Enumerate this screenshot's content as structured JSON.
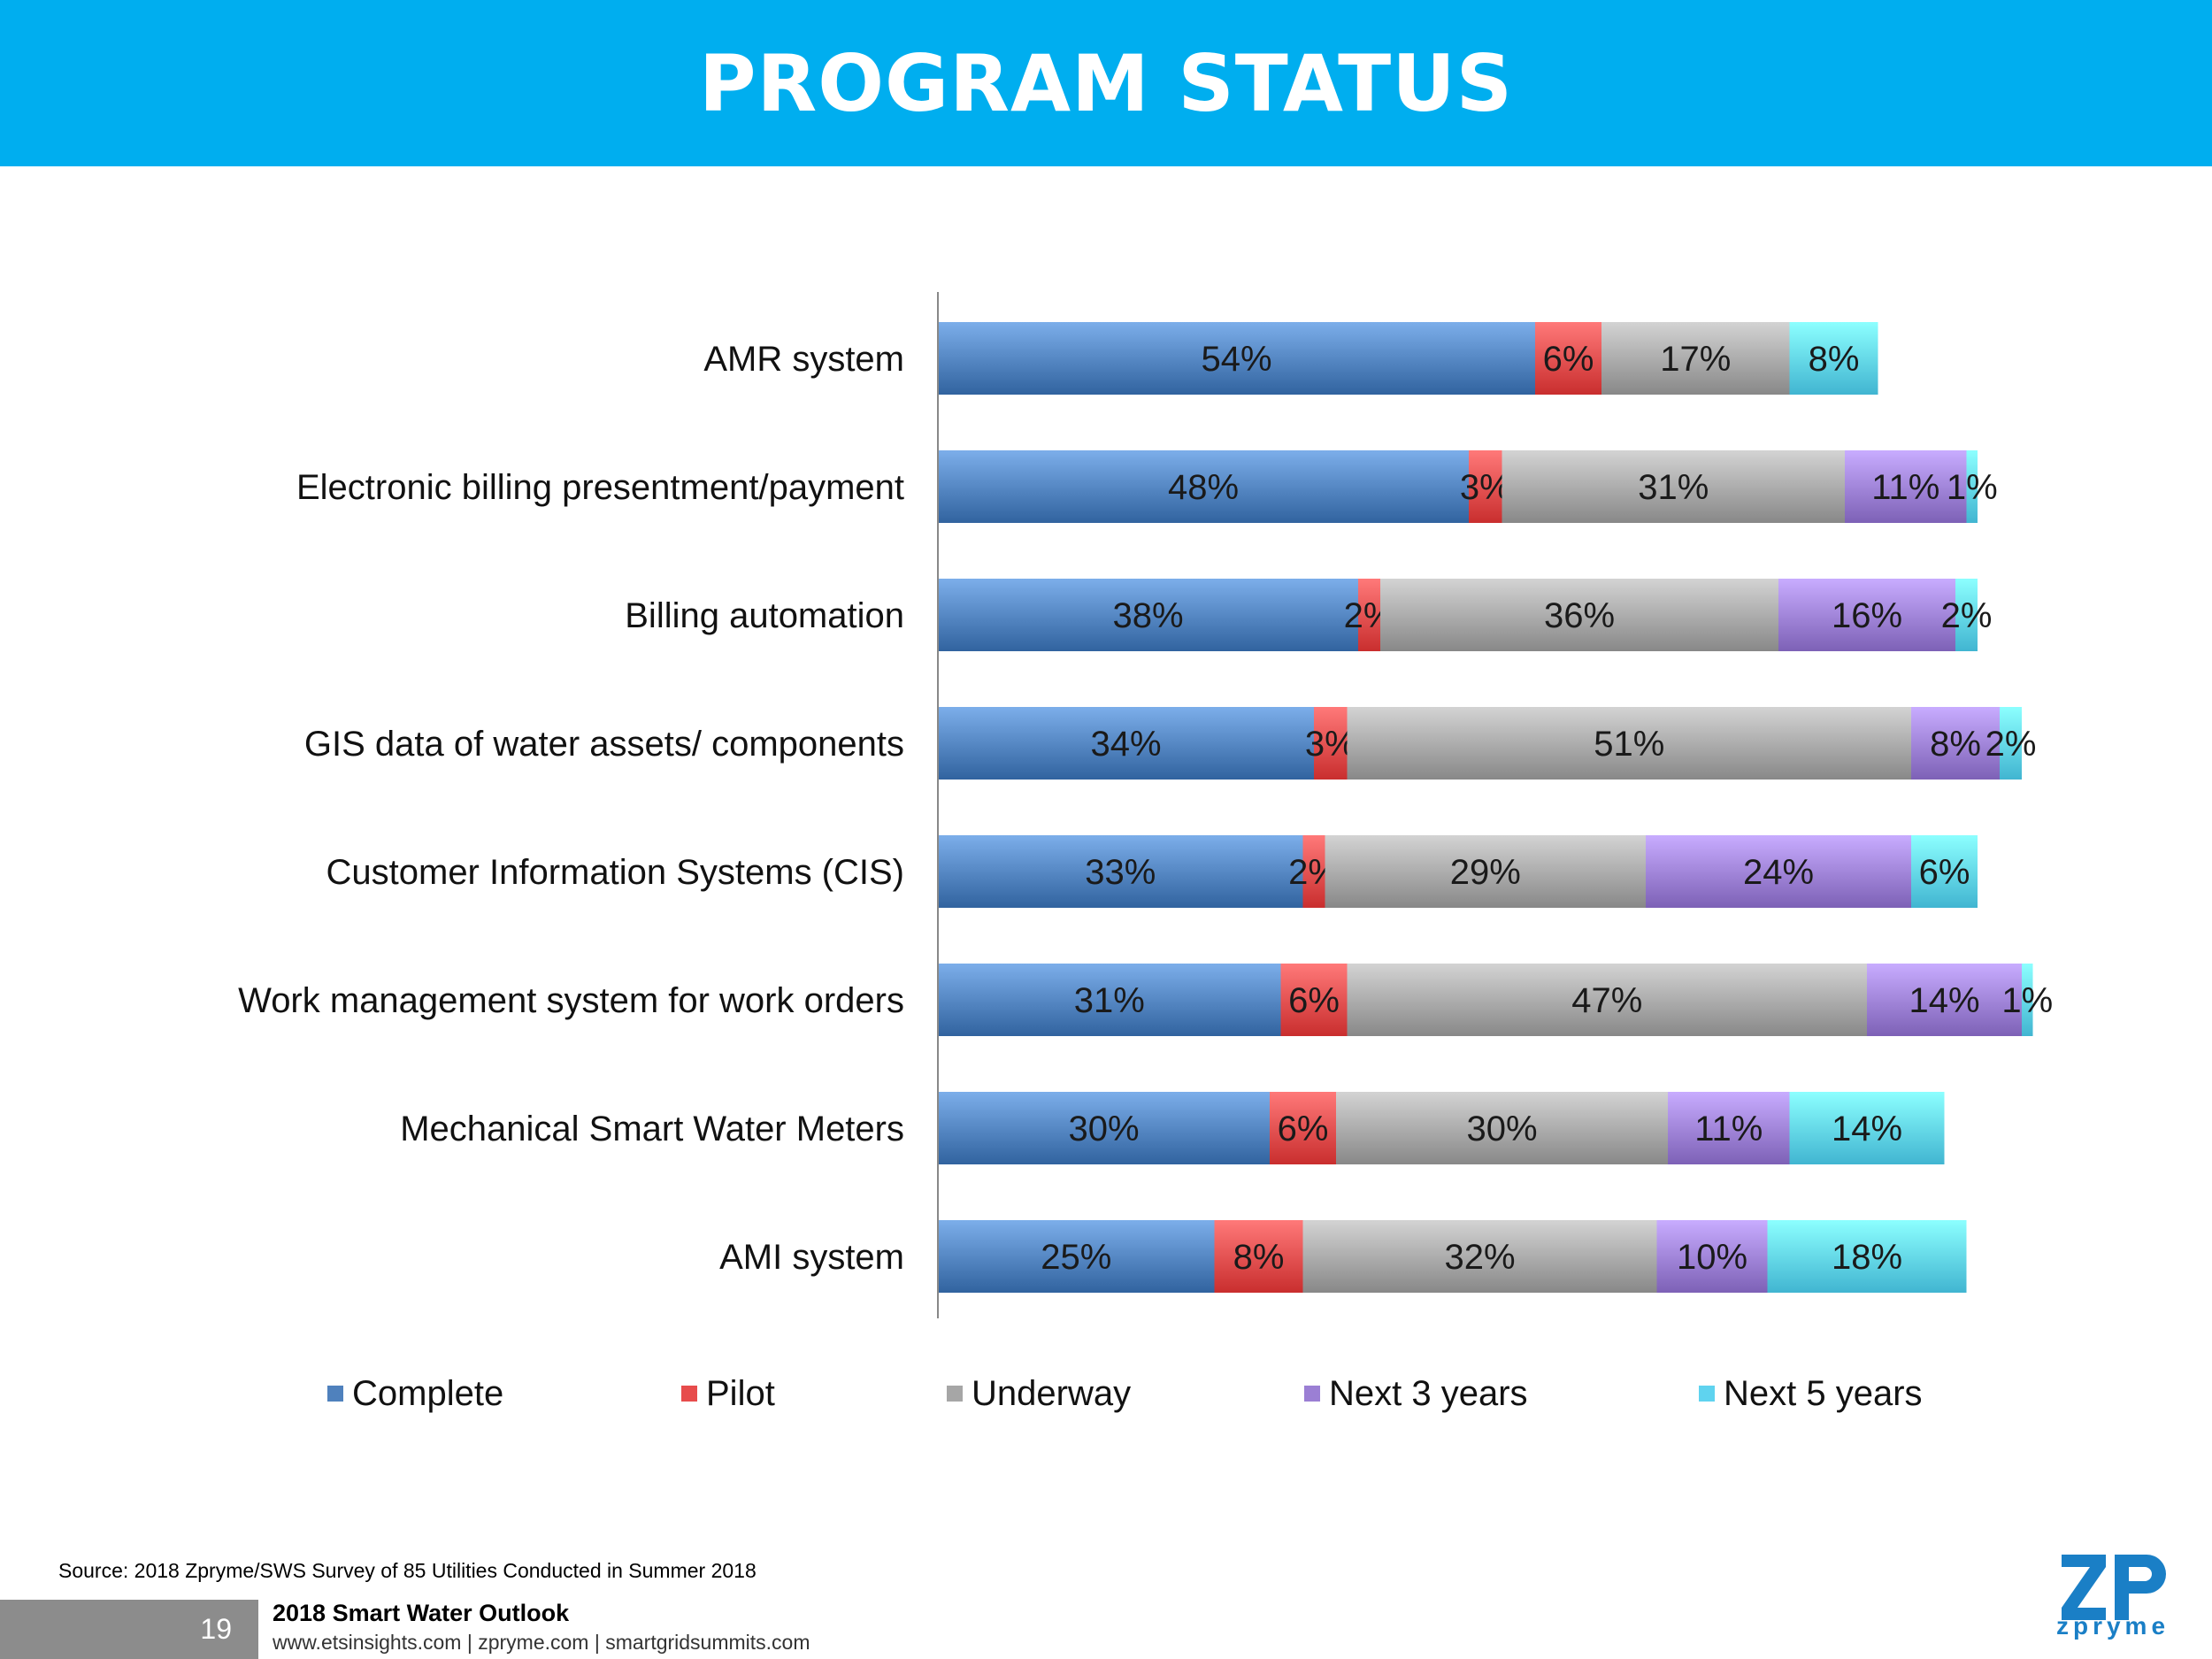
{
  "header": {
    "title": "PROGRAM STATUS"
  },
  "chart_data": {
    "type": "bar",
    "orientation": "horizontal",
    "stacked": true,
    "categories": [
      "AMR system",
      "Electronic billing presentment/payment",
      "Billing automation",
      "GIS data of water assets/ components",
      "Customer Information Systems (CIS)",
      "Work management system for work orders",
      "Mechanical Smart Water Meters",
      "AMI system"
    ],
    "series": [
      {
        "name": "Complete",
        "color": "#4f81bd",
        "values": [
          54,
          48,
          38,
          34,
          33,
          31,
          30,
          25
        ]
      },
      {
        "name": "Pilot",
        "color": "#e74c4c",
        "values": [
          6,
          3,
          2,
          3,
          2,
          6,
          6,
          8
        ]
      },
      {
        "name": "Underway",
        "color": "#a6a6a6",
        "values": [
          17,
          31,
          36,
          51,
          29,
          47,
          30,
          32
        ]
      },
      {
        "name": "Next 3 years",
        "color": "#9b7fd4",
        "values": [
          0,
          11,
          16,
          8,
          24,
          14,
          11,
          10
        ]
      },
      {
        "name": "Next 5 years",
        "color": "#5fd3ef",
        "values": [
          8,
          1,
          2,
          2,
          6,
          1,
          14,
          18
        ]
      }
    ],
    "xlim": [
      0,
      100
    ],
    "grid": false,
    "legend_position": "bottom"
  },
  "legend": [
    {
      "label": "Complete",
      "color": "#4f81bd"
    },
    {
      "label": "Pilot",
      "color": "#e74c4c"
    },
    {
      "label": "Underway",
      "color": "#a6a6a6"
    },
    {
      "label": "Next 3 years",
      "color": "#9b7fd4"
    },
    {
      "label": "Next 5 years",
      "color": "#5fd3ef"
    }
  ],
  "footer": {
    "source": "Source: 2018 Zpryme/SWS Survey of 85 Utilities Conducted in Summer 2018",
    "page_number": "19",
    "report_title": "2018 Smart Water Outlook",
    "links": "www.etsinsights.com | zpryme.com | smartgridsummits.com",
    "logo_text": "zpryme"
  }
}
